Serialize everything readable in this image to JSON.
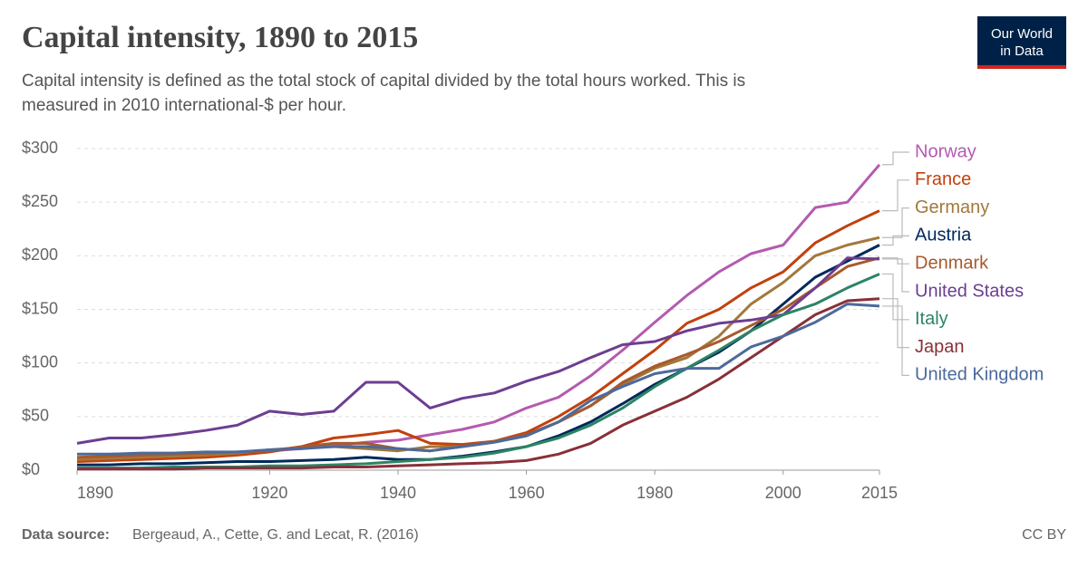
{
  "logo": [
    "Our World",
    "in Data"
  ],
  "footer": {
    "source_label": "Data source:",
    "source": "Bergeaud, A., Cette, G. and Lecat, R. (2016)",
    "license": "CC BY"
  },
  "chart_data": {
    "type": "line",
    "title": "Capital intensity, 1890 to 2015",
    "subtitle": [
      "Capital intensity is defined as the total stock of capital divided by the total hours worked. This is",
      "measured in 2010 international-$ per hour."
    ],
    "x": [
      1890,
      1895,
      1900,
      1905,
      1910,
      1915,
      1920,
      1925,
      1930,
      1935,
      1940,
      1945,
      1950,
      1955,
      1960,
      1965,
      1970,
      1975,
      1980,
      1985,
      1990,
      1995,
      2000,
      2005,
      2010,
      2015
    ],
    "xlim": [
      1890,
      2015
    ],
    "xticks": [
      1890,
      1920,
      1940,
      1960,
      1980,
      2000,
      2015
    ],
    "ylim": [
      0,
      300
    ],
    "yticks": [
      {
        "value": 0,
        "label": "$0"
      },
      {
        "value": 50,
        "label": "$50"
      },
      {
        "value": 100,
        "label": "$100"
      },
      {
        "value": 150,
        "label": "$150"
      },
      {
        "value": 200,
        "label": "$200"
      },
      {
        "value": 250,
        "label": "$250"
      },
      {
        "value": 300,
        "label": "$300"
      }
    ],
    "grid": true,
    "series": [
      {
        "name": "Norway",
        "color": "#b45ab0",
        "values": [
          10,
          11,
          12,
          13,
          15,
          16,
          18,
          20,
          23,
          26,
          28,
          33,
          38,
          45,
          58,
          68,
          88,
          112,
          138,
          163,
          185,
          202,
          210,
          245,
          250,
          285
        ]
      },
      {
        "name": "France",
        "color": "#c2410c",
        "values": [
          8,
          9,
          10,
          11,
          12,
          14,
          17,
          22,
          30,
          33,
          37,
          25,
          24,
          27,
          35,
          50,
          68,
          90,
          112,
          137,
          150,
          170,
          185,
          212,
          228,
          242
        ]
      },
      {
        "name": "Germany",
        "color": "#a2783c",
        "values": [
          10,
          11,
          12,
          13,
          14,
          16,
          19,
          21,
          22,
          20,
          18,
          22,
          22,
          26,
          32,
          45,
          60,
          80,
          95,
          105,
          125,
          155,
          175,
          200,
          210,
          217
        ]
      },
      {
        "name": "Austria",
        "color": "#00295b",
        "values": [
          5,
          5,
          6,
          6,
          7,
          8,
          8,
          9,
          10,
          12,
          10,
          10,
          13,
          17,
          22,
          32,
          45,
          62,
          80,
          95,
          110,
          130,
          155,
          180,
          195,
          210
        ]
      },
      {
        "name": "Denmark",
        "color": "#a85a2c",
        "values": [
          12,
          13,
          14,
          15,
          16,
          17,
          18,
          22,
          25,
          25,
          20,
          18,
          22,
          27,
          33,
          45,
          60,
          82,
          97,
          108,
          120,
          135,
          150,
          170,
          190,
          198
        ]
      },
      {
        "name": "United States",
        "color": "#6d3e91",
        "values": [
          25,
          30,
          30,
          33,
          37,
          42,
          55,
          52,
          55,
          82,
          82,
          58,
          67,
          72,
          83,
          92,
          105,
          117,
          120,
          130,
          137,
          140,
          145,
          170,
          198,
          197
        ]
      },
      {
        "name": "Italy",
        "color": "#2c8465",
        "values": [
          2,
          2,
          2,
          3,
          3,
          3,
          4,
          4,
          5,
          6,
          8,
          10,
          12,
          16,
          22,
          30,
          42,
          58,
          78,
          95,
          112,
          130,
          145,
          155,
          170,
          183
        ]
      },
      {
        "name": "Japan",
        "color": "#883039",
        "values": [
          1,
          1,
          1,
          1,
          2,
          2,
          2,
          2,
          3,
          3,
          4,
          5,
          6,
          7,
          9,
          15,
          25,
          42,
          55,
          68,
          85,
          105,
          125,
          145,
          158,
          160
        ]
      },
      {
        "name": "United Kingdom",
        "color": "#4c6a9c",
        "values": [
          15,
          15,
          16,
          16,
          17,
          17,
          19,
          20,
          22,
          22,
          20,
          18,
          22,
          26,
          32,
          45,
          65,
          78,
          90,
          95,
          95,
          115,
          125,
          138,
          155,
          153
        ]
      }
    ]
  }
}
